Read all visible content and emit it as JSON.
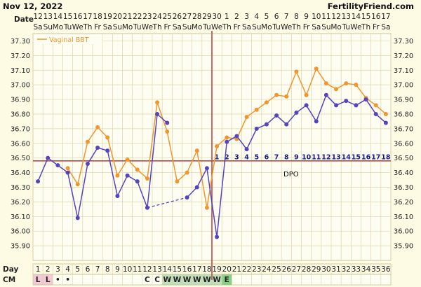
{
  "header": {
    "title": "Nov 12, 2022",
    "site": "FertilityFriend.com"
  },
  "labels": {
    "date_row": "Date",
    "day_row": "Day",
    "cm_row": "CM",
    "dpo": "DPO"
  },
  "chart_data": {
    "type": "line",
    "ylim": [
      35.8,
      37.35
    ],
    "y_ticks": [
      "37.30",
      "37.20",
      "37.10",
      "37.00",
      "36.90",
      "36.80",
      "36.70",
      "36.60",
      "36.50",
      "36.40",
      "36.30",
      "36.20",
      "36.10",
      "36.00",
      "35.90"
    ],
    "dates": [
      "12",
      "13",
      "14",
      "15",
      "16",
      "17",
      "18",
      "19",
      "20",
      "21",
      "22",
      "23",
      "24",
      "25",
      "26",
      "27",
      "28",
      "29",
      "30",
      "1",
      "2",
      "3",
      "4",
      "5",
      "6",
      "7",
      "8",
      "9",
      "10",
      "11",
      "12",
      "13",
      "14",
      "15",
      "16",
      "17"
    ],
    "weekdays": [
      "Sa",
      "Su",
      "Mo",
      "Tu",
      "We",
      "Th",
      "Fr",
      "Sa",
      "Su",
      "Mo",
      "Tu",
      "We",
      "Th",
      "Fr",
      "Sa",
      "Su",
      "Mo",
      "Tu",
      "We",
      "Th",
      "Fr",
      "Sa",
      "Su",
      "Mo",
      "Tu",
      "We",
      "Th",
      "Fr",
      "Sa",
      "Su",
      "Mo",
      "Tu",
      "We",
      "Th",
      "Fr",
      "Sa"
    ],
    "cycle_days": [
      "1",
      "2",
      "3",
      "4",
      "5",
      "6",
      "7",
      "8",
      "9",
      "10",
      "11",
      "12",
      "13",
      "14",
      "15",
      "16",
      "17",
      "18",
      "19",
      "20",
      "21",
      "22",
      "23",
      "24",
      "25",
      "26",
      "27",
      "28",
      "29",
      "30",
      "31",
      "32",
      "33",
      "34",
      "35",
      "36"
    ],
    "cm": [
      "L",
      "L",
      "•",
      "•",
      "",
      "",
      "",
      "",
      "",
      "",
      "",
      "C",
      "C",
      "W",
      "W",
      "W",
      "W",
      "W",
      "W",
      "E",
      "",
      "",
      "",
      "",
      "",
      "",
      "",
      "",
      "",
      "",
      "",
      "",
      "",
      "",
      "",
      ""
    ],
    "cm_colors": {
      "L": "#f2c9d5",
      "W": "#bfe0bb",
      "E": "#86cf86"
    },
    "ovulation_day": 18,
    "coverline": 36.48,
    "dpo_labels": [
      "1",
      "2",
      "3",
      "4",
      "5",
      "6",
      "7",
      "8",
      "9",
      "10",
      "11",
      "12",
      "13",
      "14",
      "15",
      "16",
      "17",
      "18"
    ],
    "series": [
      {
        "name": "Vaginal BBT",
        "color": "#f0962e",
        "values": [
          null,
          null,
          null,
          36.43,
          36.32,
          36.61,
          36.71,
          36.64,
          36.38,
          36.49,
          36.42,
          36.36,
          36.88,
          36.68,
          36.34,
          36.4,
          36.55,
          36.16,
          36.58,
          36.64,
          36.63,
          36.78,
          36.83,
          36.88,
          36.93,
          36.92,
          37.09,
          36.93,
          37.11,
          37.01,
          36.97,
          37.01,
          37.0,
          36.91,
          36.86,
          36.8
        ]
      },
      {
        "color": "#5544bb",
        "values": [
          36.34,
          36.5,
          36.45,
          36.4,
          36.09,
          36.46,
          36.57,
          36.55,
          36.24,
          36.38,
          36.34,
          36.16,
          36.8,
          36.74,
          null,
          36.23,
          36.3,
          36.43,
          35.96,
          36.61,
          36.65,
          36.56,
          36.7,
          36.73,
          36.79,
          36.73,
          36.81,
          36.86,
          36.75,
          36.93,
          36.86,
          36.89,
          36.86,
          36.9,
          36.8,
          36.74
        ]
      }
    ],
    "dashed_gap": [
      11,
      15
    ]
  }
}
